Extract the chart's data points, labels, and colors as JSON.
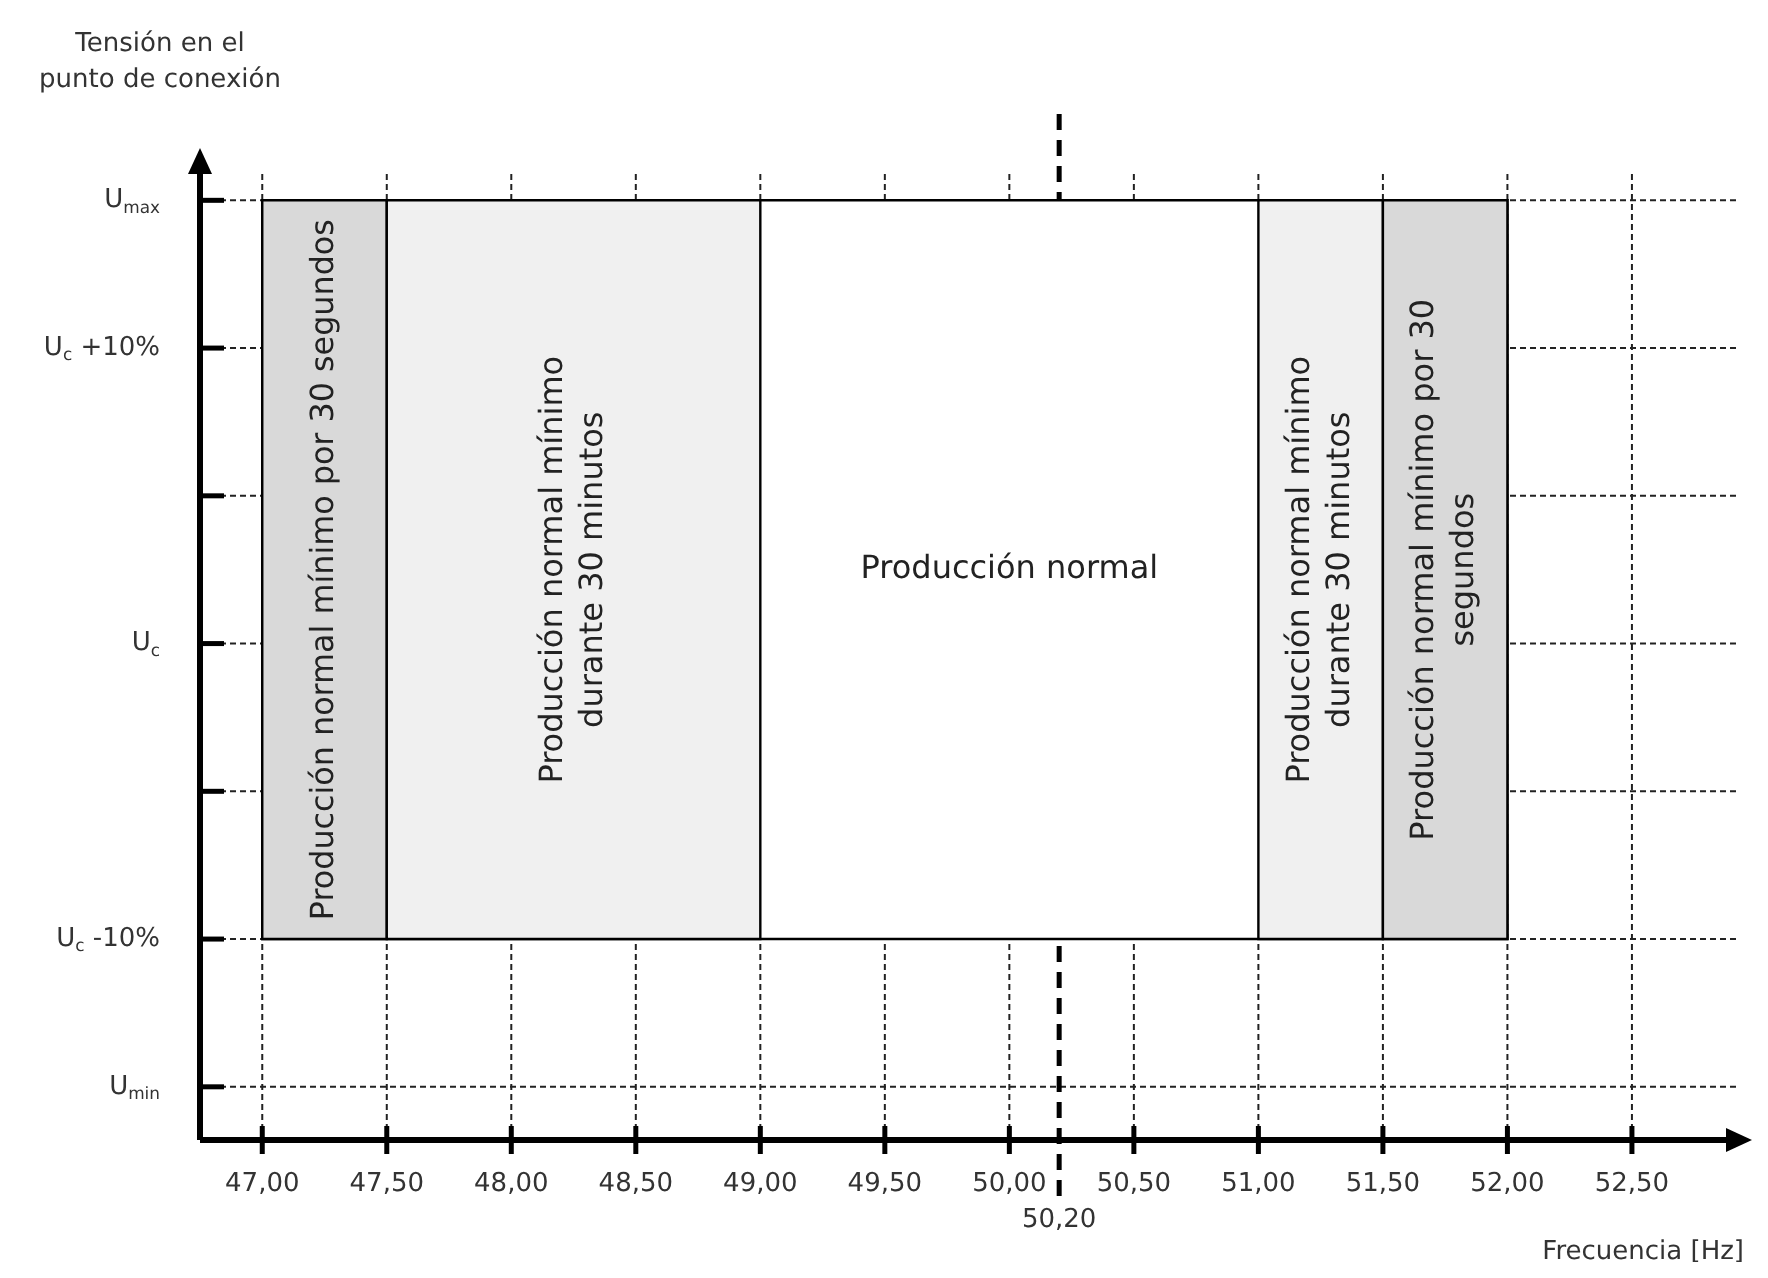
{
  "chart_data": {
    "type": "line",
    "xlabel": "Frecuencia [Hz]",
    "ylabel": "Tensión en el\npunto de conexión",
    "xlim": [
      46.75,
      52.95
    ],
    "ylim": [
      -16.8,
      16.5
    ],
    "xticks": [
      {
        "value": 47,
        "label": "47,00"
      },
      {
        "value": 47.5,
        "label": "47,50"
      },
      {
        "value": 48,
        "label": "48,00"
      },
      {
        "value": 48.5,
        "label": "48,50"
      },
      {
        "value": 49,
        "label": "49,00"
      },
      {
        "value": 49.5,
        "label": "49,50"
      },
      {
        "value": 50,
        "label": "50,00"
      },
      {
        "value": 50.5,
        "label": "50,50"
      },
      {
        "value": 51,
        "label": "51,00"
      },
      {
        "value": 51.5,
        "label": "51,50"
      },
      {
        "value": 52,
        "label": "52,00"
      },
      {
        "value": 52.5,
        "label": "52,50"
      }
    ],
    "yticks": [
      {
        "value": -15,
        "label": "U$_{min}$"
      },
      {
        "value": -10,
        "label": "U$_{c}$ -10%"
      },
      {
        "value": -5,
        "label": null
      },
      {
        "value": 0,
        "label": "U$_{c}$"
      },
      {
        "value": 5,
        "label": null
      },
      {
        "value": 10,
        "label": "U$_{c}$ +10%"
      },
      {
        "value": 15,
        "label": "U$_{max}$"
      }
    ],
    "grid": true,
    "ref_lines": [
      {
        "axis": "x",
        "value": 50.2,
        "label": "50,20",
        "line_style": "dashed",
        "color": "#000000"
      }
    ],
    "bands": [
      {
        "axis": "y",
        "from": -10,
        "to": 15,
        "label": "Producción normal",
        "color": "#ffffff"
      },
      {
        "axis": "x",
        "from": 47,
        "to": 47.5,
        "label": "Producción normal mínimo por 30 segundos",
        "color": "#d9d9d9"
      },
      {
        "axis": "x",
        "from": 47.5,
        "to": 49,
        "label": "Producción normal mínimo\ndurante 30 minutos",
        "color": "#f0f0f0"
      },
      {
        "axis": "x",
        "from": 51,
        "to": 51.5,
        "label": "Producción normal mínimo\ndurante 30 minutos",
        "color": "#f0f0f0"
      },
      {
        "axis": "x",
        "from": 51.5,
        "to": 52,
        "label": "Producción normal mínimo por 30\nsegundos",
        "color": "#d9d9d9"
      }
    ]
  }
}
